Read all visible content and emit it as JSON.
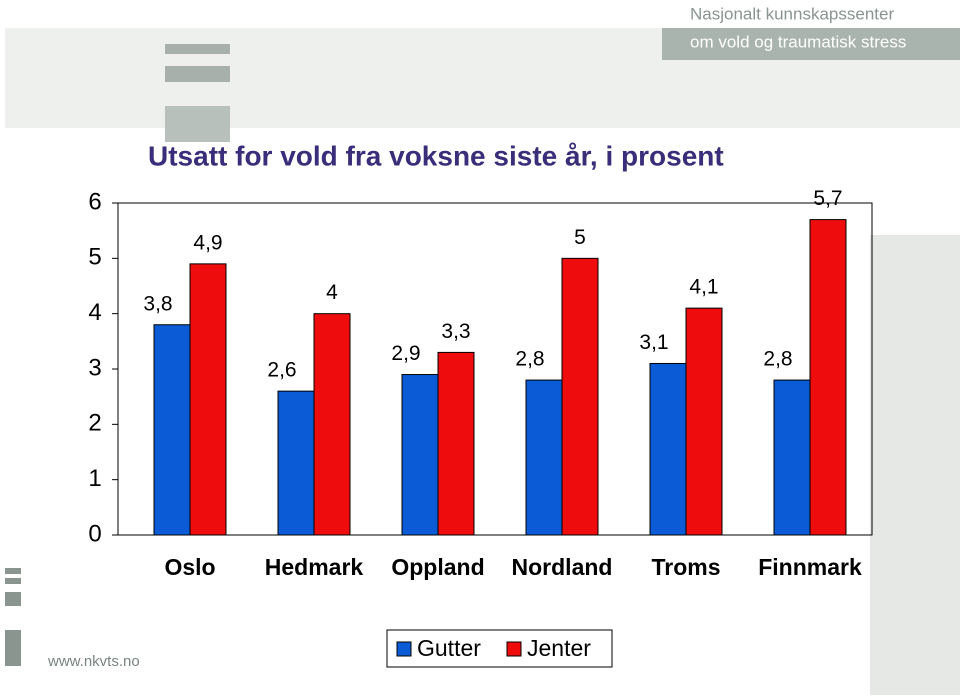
{
  "header": {
    "line1": "Nasjonalt kunnskapssenter",
    "line2": "om vold og traumatisk stress"
  },
  "footer": {
    "url": "www.nkvts.no"
  },
  "chart_data": {
    "type": "bar",
    "title": "Utsatt for vold fra voksne siste år, i prosent",
    "categories": [
      "Oslo",
      "Hedmark",
      "Oppland",
      "Nordland",
      "Troms",
      "Finnmark"
    ],
    "series": [
      {
        "name": "Gutter",
        "color": "#0b5bd6",
        "values": [
          3.8,
          2.6,
          2.9,
          2.8,
          3.1,
          2.8
        ],
        "value_labels": [
          "3,8",
          "2,6",
          "2,9",
          "2,8",
          "3,1",
          "2,8"
        ]
      },
      {
        "name": "Jenter",
        "color": "#ee0c0c",
        "values": [
          4.9,
          4,
          3.3,
          5,
          4.1,
          5.7
        ],
        "value_labels": [
          "4,9",
          "4",
          "3,3",
          "5",
          "4,1",
          "5,7"
        ]
      }
    ],
    "ylim": [
      0,
      6
    ],
    "yticks": [
      0,
      1,
      2,
      3,
      4,
      5,
      6
    ],
    "grid": false,
    "legend": "bottom"
  }
}
